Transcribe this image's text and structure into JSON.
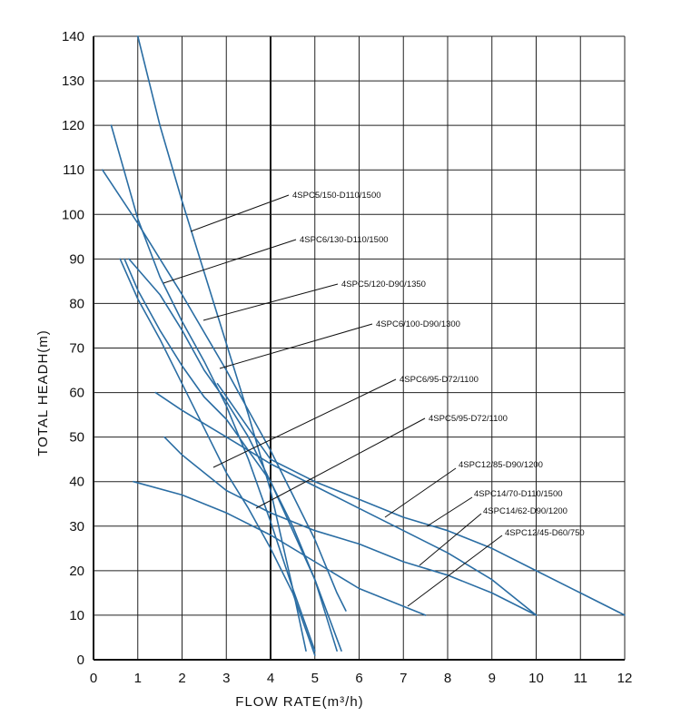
{
  "chart_data": {
    "type": "line",
    "title": "",
    "xlabel": "FLOW RATE(m³/h)",
    "ylabel": "TOTAL HEADH(m)",
    "xlim": [
      0,
      12
    ],
    "ylim": [
      0,
      140
    ],
    "xticks": [
      0,
      1,
      2,
      3,
      4,
      5,
      6,
      7,
      8,
      9,
      10,
      11,
      12
    ],
    "yticks": [
      0,
      10,
      20,
      30,
      40,
      50,
      60,
      70,
      80,
      90,
      100,
      110,
      120,
      130,
      140
    ],
    "grid": true,
    "legend": "inline-labels",
    "line_color": "#2a6da3",
    "series": [
      {
        "name": "4SPC5/150-D110/1500",
        "x": [
          1.0,
          1.5,
          2.0,
          2.5,
          3.0,
          3.5,
          4.0,
          4.5,
          4.8
        ],
        "y": [
          140,
          120,
          103,
          87,
          71,
          55,
          38,
          16,
          2
        ]
      },
      {
        "name": "4SPC6/130-D110/1500",
        "x": [
          0.4,
          1.0,
          1.5,
          2.0,
          2.5,
          3.0,
          3.5,
          4.0,
          4.5,
          5.0
        ],
        "y": [
          120,
          99,
          86,
          76,
          67,
          57,
          45,
          31,
          16,
          2
        ]
      },
      {
        "name": "4SPC5/120-D90/1350",
        "x": [
          0.2,
          1.0,
          2.0,
          3.0,
          3.5,
          4.0,
          4.5,
          5.0,
          5.5,
          5.7
        ],
        "y": [
          110,
          98,
          82,
          65,
          56,
          47,
          37,
          27,
          15,
          11
        ]
      },
      {
        "name": "4SPC6/100-D90/1300",
        "x": [
          0.8,
          1.5,
          2.0,
          2.5,
          3.0,
          3.5,
          4.0,
          4.5,
          5.0,
          5.6
        ],
        "y": [
          90,
          82,
          74,
          65,
          58,
          50,
          40,
          29,
          18,
          2
        ]
      },
      {
        "name": "4SPC6/95-D72/1100",
        "x": [
          0.6,
          1.0,
          1.5,
          2.0,
          2.5,
          3.0,
          3.5,
          4.0,
          4.5,
          5.0
        ],
        "y": [
          90,
          81,
          72,
          62,
          52,
          42,
          34,
          25,
          15,
          1
        ]
      },
      {
        "name": "4SPC5/95-D72/1100",
        "x": [
          0.7,
          1.0,
          1.5,
          2.0,
          2.5,
          3.0,
          3.5,
          4.0,
          4.5,
          5.0,
          5.5
        ],
        "y": [
          90,
          83,
          74,
          66,
          59,
          54,
          47,
          40,
          30,
          18,
          2
        ]
      },
      {
        "name": "4SPC12/85-D90/1200",
        "x": [
          1.4,
          2.0,
          3.0,
          4.0,
          5.0,
          6.0,
          7.0,
          8.0,
          9.0,
          10.0
        ],
        "y": [
          60,
          56,
          50,
          44,
          39,
          34,
          29,
          24,
          18,
          10
        ]
      },
      {
        "name": "4SPC14/70-D110/1500",
        "x": [
          2.8,
          3.5,
          4.0,
          5.0,
          6.0,
          7.0,
          8.0,
          9.0,
          10.0,
          11.0,
          12.0
        ],
        "y": [
          62,
          52,
          45,
          40,
          36,
          32,
          29,
          25,
          20,
          15,
          10
        ]
      },
      {
        "name": "4SPC14/62-D90/1200",
        "x": [
          1.6,
          2.0,
          3.0,
          4.0,
          5.0,
          6.0,
          7.0,
          8.0,
          9.0,
          10.0
        ],
        "y": [
          50,
          46,
          38,
          33,
          29,
          26,
          22,
          19,
          15,
          10
        ]
      },
      {
        "name": "4SPC12/45-D60/750",
        "x": [
          0.9,
          2.0,
          3.0,
          4.0,
          5.0,
          6.0,
          7.0,
          7.5
        ],
        "y": [
          40,
          37,
          33,
          28,
          22,
          16,
          12,
          10
        ]
      }
    ],
    "labels": [
      {
        "series": "4SPC5/150-D110/1500",
        "text": "4SPC5/150-D110/1500"
      },
      {
        "series": "4SPC6/130-D110/1500",
        "text": "4SPC6/130-D110/1500"
      },
      {
        "series": "4SPC5/120-D90/1350",
        "text": "4SPC5/120-D90/1350"
      },
      {
        "series": "4SPC6/100-D90/1300",
        "text": "4SPC6/100-D90/1300"
      },
      {
        "series": "4SPC6/95-D72/1100",
        "text": "4SPC6/95-D72/1100"
      },
      {
        "series": "4SPC5/95-D72/1100",
        "text": "4SPC5/95-D72/1100"
      },
      {
        "series": "4SPC12/85-D90/1200",
        "text": "4SPC12/85-D90/1200"
      },
      {
        "series": "4SPC14/70-D110/1500",
        "text": "4SPC14/70-D110/1500"
      },
      {
        "series": "4SPC14/62-D90/1200",
        "text": "4SPC14/62-D90/1200"
      },
      {
        "series": "4SPC12/45-D60/750",
        "text": "4SPC12/45-D60/750"
      }
    ]
  }
}
